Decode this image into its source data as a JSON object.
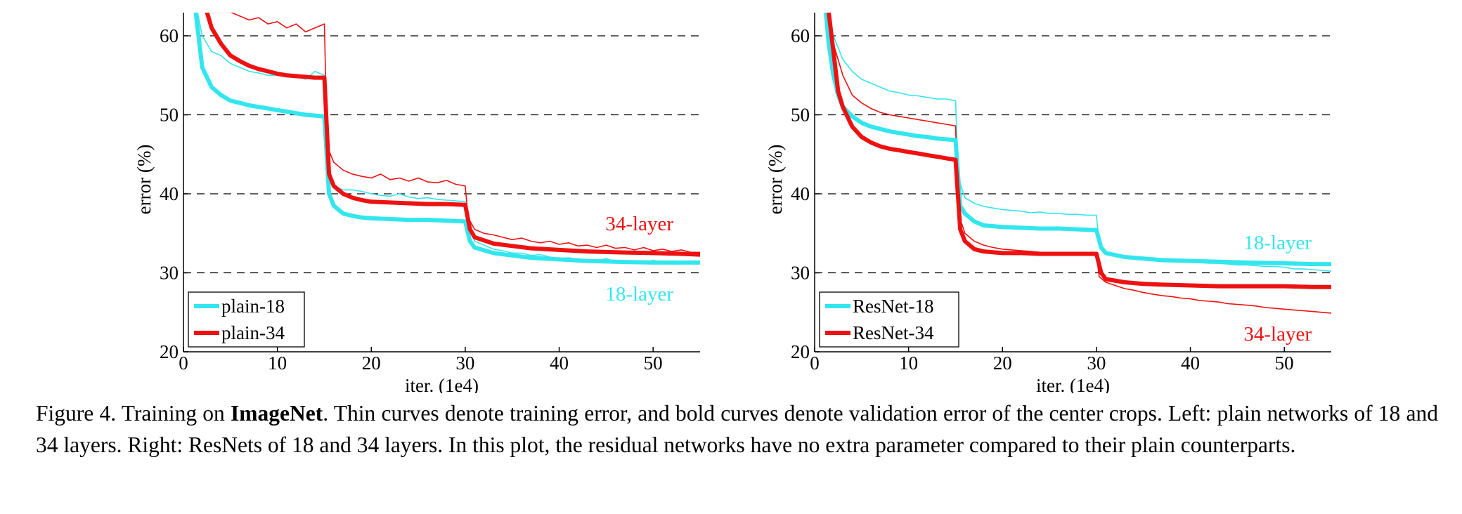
{
  "chart_data": [
    {
      "type": "line",
      "xlabel": "iter. (1e4)",
      "ylabel": "error (%)",
      "xlim": [
        0,
        55
      ],
      "ylim": [
        20,
        63
      ],
      "xticks": [
        0,
        10,
        20,
        30,
        40,
        50
      ],
      "yticks": [
        20,
        30,
        40,
        50,
        60
      ],
      "grid": "horizontal dashed",
      "legend": "bottom-left",
      "annotations": [
        "34-layer",
        "18-layer"
      ],
      "colors": {
        "18": "#33e6ee",
        "34": "#ee1111"
      },
      "series": [
        {
          "name": "plain-18",
          "kind": "validation",
          "x": [
            1.3,
            2,
            3,
            4,
            5,
            6,
            7,
            8,
            9,
            10,
            11,
            12,
            13,
            14,
            15,
            15.5,
            16,
            17,
            18,
            19,
            20,
            22,
            24,
            26,
            28,
            30,
            30.5,
            31,
            33,
            35,
            37,
            40,
            43,
            46,
            50,
            53,
            55
          ],
          "y": [
            63,
            56,
            53.5,
            52.5,
            51.8,
            51.5,
            51.2,
            51,
            50.8,
            50.6,
            50.4,
            50.2,
            50,
            49.9,
            49.8,
            40,
            38.5,
            37.5,
            37.2,
            37,
            36.9,
            36.8,
            36.7,
            36.7,
            36.6,
            36.5,
            34,
            33.2,
            32.5,
            32.2,
            31.9,
            31.7,
            31.5,
            31.4,
            31.3,
            31.3,
            31.3
          ]
        },
        {
          "name": "plain-34",
          "kind": "validation",
          "x": [
            2.5,
            3,
            4,
            5,
            6,
            7,
            8,
            9,
            10,
            11,
            12,
            13,
            14,
            15,
            15.5,
            16,
            17,
            18,
            19,
            20,
            22,
            24,
            26,
            28,
            30,
            30.5,
            31,
            33,
            35,
            37,
            40,
            43,
            46,
            50,
            53,
            55
          ],
          "y": [
            63,
            61,
            59,
            57.5,
            56.8,
            56.2,
            55.8,
            55.5,
            55.2,
            55,
            54.9,
            54.8,
            54.7,
            54.7,
            42.5,
            41,
            40,
            39.5,
            39.2,
            39,
            38.9,
            38.8,
            38.7,
            38.7,
            38.6,
            35.5,
            34.5,
            33.7,
            33.4,
            33.1,
            32.9,
            32.7,
            32.6,
            32.5,
            32.4,
            32.3
          ]
        },
        {
          "name": "plain-18 train",
          "kind": "training",
          "x": [
            1.5,
            2,
            3,
            4,
            5,
            6,
            7,
            8,
            9,
            10,
            11,
            12,
            13,
            14,
            15,
            15.3,
            16,
            17,
            18,
            19,
            20,
            21,
            22,
            23,
            24,
            25,
            26,
            27,
            28,
            29,
            30,
            30.3,
            31,
            32,
            33,
            34,
            35,
            36,
            37,
            38,
            39,
            40,
            41,
            42,
            43,
            44,
            45,
            46,
            47,
            48,
            49,
            50,
            51,
            52,
            53,
            54,
            55
          ],
          "y": [
            63,
            60,
            58,
            57.5,
            56.5,
            56,
            55.5,
            55.3,
            55,
            55,
            54.8,
            55,
            54.5,
            55.5,
            55,
            44,
            41,
            40.5,
            40.5,
            40.3,
            40,
            39.8,
            39.7,
            40,
            39.6,
            39.4,
            39.5,
            39.3,
            39.2,
            39.1,
            39,
            36,
            34,
            33.5,
            33,
            32.8,
            32.5,
            32.5,
            32.2,
            32.3,
            32,
            31.8,
            31.9,
            31.7,
            31.7,
            31.5,
            31.8,
            31.4,
            31.3,
            31.5,
            31.2,
            31.6,
            31.2,
            31.5,
            31.3,
            31.4,
            31.3
          ]
        },
        {
          "name": "plain-34 train",
          "kind": "training",
          "x": [
            3,
            4,
            5,
            6,
            7,
            8,
            9,
            10,
            11,
            12,
            13,
            14,
            15,
            15.3,
            16,
            17,
            18,
            19,
            20,
            21,
            22,
            23,
            24,
            25,
            26,
            27,
            28,
            29,
            30,
            30.3,
            31,
            32,
            33,
            34,
            35,
            36,
            37,
            38,
            39,
            40,
            41,
            42,
            43,
            44,
            45,
            46,
            47,
            48,
            49,
            50,
            51,
            52,
            53,
            54,
            55
          ],
          "y": [
            63,
            63,
            63,
            62.5,
            62,
            62.3,
            61.5,
            61.8,
            61,
            61.5,
            60.5,
            61,
            61.5,
            46,
            44,
            43,
            42.5,
            42.2,
            42,
            42.5,
            41.8,
            42,
            41.6,
            42,
            41.5,
            41.4,
            41.7,
            41.2,
            41,
            37,
            35.5,
            35,
            34.8,
            34.5,
            34.2,
            34.4,
            34,
            33.8,
            34,
            33.6,
            33.8,
            33.4,
            33.5,
            33.2,
            33.5,
            33.1,
            33.2,
            32.9,
            33.2,
            32.8,
            33,
            32.7,
            32.9,
            32.6,
            32.6
          ]
        }
      ]
    },
    {
      "type": "line",
      "xlabel": "iter. (1e4)",
      "ylabel": "error (%)",
      "xlim": [
        0,
        55
      ],
      "ylim": [
        20,
        63
      ],
      "xticks": [
        0,
        10,
        20,
        30,
        40,
        50
      ],
      "yticks": [
        20,
        30,
        40,
        50,
        60
      ],
      "grid": "horizontal dashed",
      "legend": "bottom-left",
      "annotations": [
        "18-layer",
        "34-layer"
      ],
      "colors": {
        "18": "#33e6ee",
        "34": "#ee1111"
      },
      "series": [
        {
          "name": "ResNet-18",
          "kind": "validation",
          "x": [
            1.2,
            1.5,
            2,
            2.5,
            3,
            4,
            5,
            6,
            7,
            8,
            9,
            10,
            11,
            12,
            13,
            14,
            15,
            15.5,
            16,
            17,
            18,
            19,
            20,
            22,
            24,
            26,
            28,
            30,
            30.5,
            31,
            33,
            35,
            37,
            40,
            43,
            46,
            50,
            53,
            55
          ],
          "y": [
            63,
            59,
            55,
            52.5,
            51,
            49.8,
            49,
            48.5,
            48.2,
            47.9,
            47.7,
            47.5,
            47.3,
            47.2,
            47,
            46.9,
            46.8,
            38.5,
            37.5,
            36.5,
            36,
            35.9,
            35.8,
            35.7,
            35.6,
            35.6,
            35.5,
            35.4,
            33.2,
            32.5,
            32,
            31.8,
            31.6,
            31.5,
            31.4,
            31.3,
            31.2,
            31.1,
            31.1
          ]
        },
        {
          "name": "ResNet-34",
          "kind": "validation",
          "x": [
            1.5,
            2,
            2.5,
            3,
            4,
            5,
            6,
            7,
            8,
            9,
            10,
            11,
            12,
            13,
            14,
            15,
            15.5,
            16,
            17,
            18,
            19,
            20,
            22,
            24,
            26,
            28,
            30,
            30.5,
            31,
            33,
            35,
            37,
            40,
            43,
            46,
            50,
            53,
            55
          ],
          "y": [
            63,
            58,
            53,
            51,
            48.5,
            47.2,
            46.5,
            46,
            45.7,
            45.5,
            45.3,
            45.1,
            44.9,
            44.7,
            44.5,
            44.3,
            35.5,
            34,
            33,
            32.7,
            32.6,
            32.5,
            32.5,
            32.4,
            32.4,
            32.4,
            32.4,
            30,
            29.2,
            28.8,
            28.6,
            28.5,
            28.4,
            28.3,
            28.3,
            28.3,
            28.2,
            28.2
          ]
        },
        {
          "name": "ResNet-18 train",
          "kind": "training",
          "x": [
            1.3,
            2,
            3,
            4,
            5,
            6,
            7,
            8,
            9,
            10,
            11,
            12,
            13,
            14,
            15,
            15.3,
            16,
            17,
            18,
            19,
            20,
            21,
            22,
            23,
            24,
            25,
            26,
            27,
            28,
            29,
            30,
            30.3,
            31,
            32,
            33,
            34,
            35,
            36,
            37,
            38,
            39,
            40,
            41,
            42,
            43,
            44,
            45,
            46,
            47,
            48,
            49,
            50,
            51,
            52,
            53,
            54,
            55
          ],
          "y": [
            63,
            60,
            57,
            55.5,
            54.5,
            54,
            53.5,
            53,
            52.8,
            52.5,
            52.4,
            52.2,
            52,
            52,
            51.8,
            42,
            39.5,
            38.8,
            38.4,
            38.2,
            38,
            37.9,
            37.8,
            37.6,
            37.7,
            37.5,
            37.5,
            37.4,
            37.4,
            37.3,
            37.3,
            33.5,
            32.5,
            32.2,
            32,
            31.9,
            31.8,
            31.7,
            31.6,
            31.5,
            31.5,
            31.4,
            31.3,
            31.2,
            31.2,
            31.1,
            31,
            31,
            30.9,
            30.8,
            30.8,
            30.7,
            30.5,
            30.5,
            30.4,
            30.3,
            30.2
          ]
        },
        {
          "name": "ResNet-34 train",
          "kind": "training",
          "x": [
            1.5,
            2,
            3,
            4,
            5,
            6,
            7,
            8,
            9,
            10,
            11,
            12,
            13,
            14,
            15,
            15.3,
            16,
            17,
            18,
            19,
            20,
            21,
            22,
            23,
            24,
            25,
            26,
            27,
            28,
            29,
            30,
            30.3,
            31,
            32,
            33,
            34,
            35,
            36,
            37,
            38,
            39,
            40,
            41,
            42,
            43,
            44,
            45,
            46,
            47,
            48,
            49,
            50,
            51,
            52,
            53,
            54,
            55
          ],
          "y": [
            63,
            59,
            55,
            52.5,
            51.5,
            50.8,
            50.3,
            50,
            49.8,
            49.6,
            49.4,
            49.2,
            49,
            48.8,
            48.6,
            37.5,
            35,
            34,
            33.5,
            33.2,
            33,
            32.9,
            32.8,
            32.7,
            32.6,
            32.6,
            32.5,
            32.5,
            32.4,
            32.3,
            32.2,
            29.5,
            28.8,
            28.4,
            28,
            27.8,
            27.5,
            27.3,
            27.1,
            27,
            26.8,
            26.7,
            26.5,
            26.4,
            26.3,
            26.1,
            26,
            25.9,
            25.8,
            25.6,
            25.5,
            25.4,
            25.3,
            25.2,
            25.1,
            25,
            24.9
          ]
        }
      ]
    }
  ],
  "caption": {
    "prefix": "Figure 4. Training on ",
    "bold": "ImageNet",
    "rest": ". Thin curves denote training error, and bold curves denote validation error of the center crops. Left: plain networks of 18 and 34 layers. Right: ResNets of 18 and 34 layers. In this plot, the residual networks have no extra parameter compared to their plain counterparts."
  }
}
